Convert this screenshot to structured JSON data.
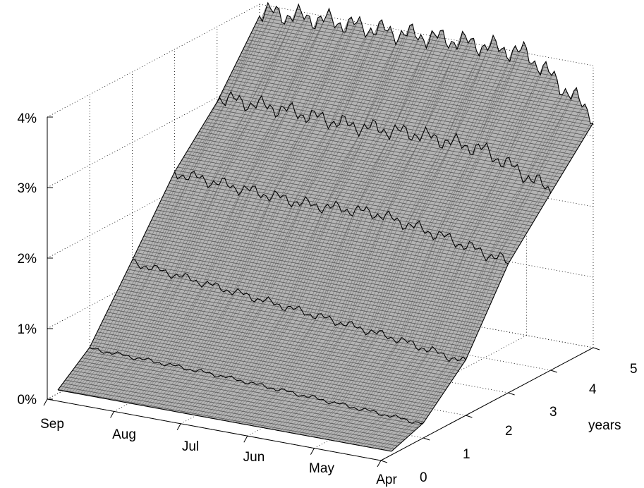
{
  "chart_data": {
    "type": "surface",
    "title": "",
    "zlabel": "",
    "xlabel": "",
    "ylabel": "years",
    "x_ticks": [
      "Sep",
      "Aug",
      "Jul",
      "Jun",
      "May",
      "Apr"
    ],
    "y_ticks": [
      "0",
      "1",
      "2",
      "3",
      "4",
      "5"
    ],
    "z_ticks": [
      "0%",
      "1%",
      "2%",
      "3%",
      "4%"
    ],
    "x_range": [
      "Sep",
      "Apr"
    ],
    "y_range": [
      0,
      5
    ],
    "z_range": [
      0,
      4
    ],
    "z_unit": "%",
    "grid": true,
    "surface_color": "#b4b4b4",
    "edge_color": "#000000",
    "maturities_years": [
      0.25,
      1,
      2,
      3,
      4,
      5
    ],
    "surface_samples": {
      "month_positions": [
        "Sep",
        "Aug",
        "Jul",
        "Jun",
        "May",
        "Apr"
      ],
      "rates_percent_by_maturity": {
        "0.25": [
          0.05,
          0.05,
          0.05,
          0.05,
          0.05,
          0.05
        ],
        "1": [
          0.4,
          0.38,
          0.35,
          0.3,
          0.25,
          0.2
        ],
        "2": [
          1.3,
          1.2,
          1.1,
          1.0,
          0.9,
          0.75
        ],
        "3": [
          2.25,
          2.2,
          2.15,
          2.2,
          2.05,
          1.85
        ],
        "4": [
          3.0,
          3.0,
          2.95,
          3.0,
          2.95,
          2.55
        ],
        "5": [
          3.9,
          3.95,
          3.95,
          4.0,
          4.0,
          3.3
        ]
      }
    }
  }
}
